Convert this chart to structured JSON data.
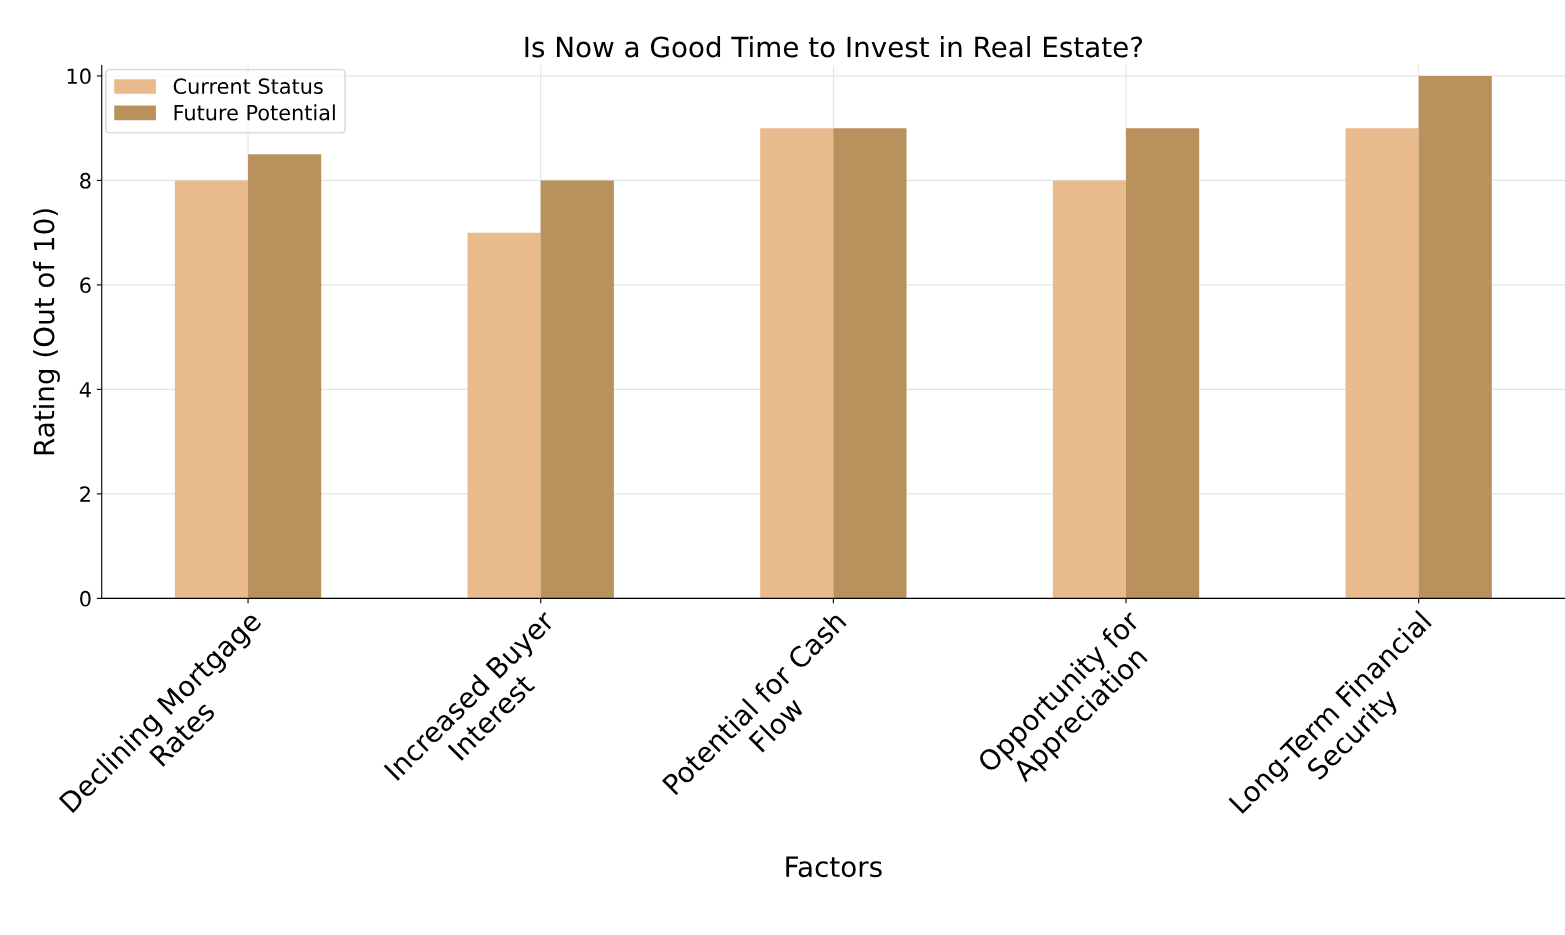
{
  "chart_data": {
    "type": "bar",
    "title": "Is Now a Good Time to Invest in Real Estate?",
    "xlabel": "Factors",
    "ylabel": "Rating (Out of 10)",
    "categories": [
      "Declining Mortgage\nRates",
      "Increased Buyer\nInterest",
      "Potential for Cash\nFlow",
      "Opportunity for\nAppreciation",
      "Long-Term Financial\nSecurity"
    ],
    "series": [
      {
        "name": "Current Status",
        "color": "#e9bb8c",
        "values": [
          8,
          7,
          9,
          8,
          9
        ]
      },
      {
        "name": "Future Potential",
        "color": "#b8915c",
        "values": [
          8.5,
          8,
          9,
          9,
          10
        ]
      }
    ],
    "ylim": [
      0,
      10.2
    ],
    "yticks": [
      0,
      2,
      4,
      6,
      8,
      10
    ],
    "grid": true,
    "legend": "top left"
  }
}
